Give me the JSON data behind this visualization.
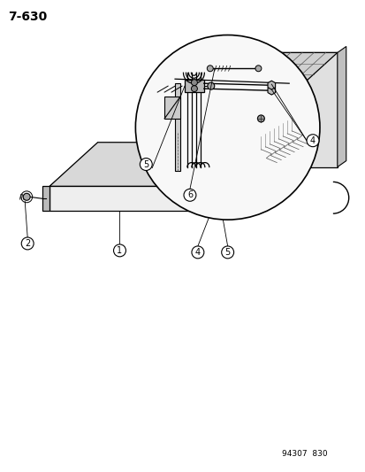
{
  "title": "7-630",
  "part_number": "94307  830",
  "bg": "#ffffff",
  "lc": "#000000",
  "fig_w": 4.14,
  "fig_h": 5.33,
  "dpi": 100,
  "title_fs": 10,
  "pnum_fs": 6.5,
  "callout_fs": 7
}
